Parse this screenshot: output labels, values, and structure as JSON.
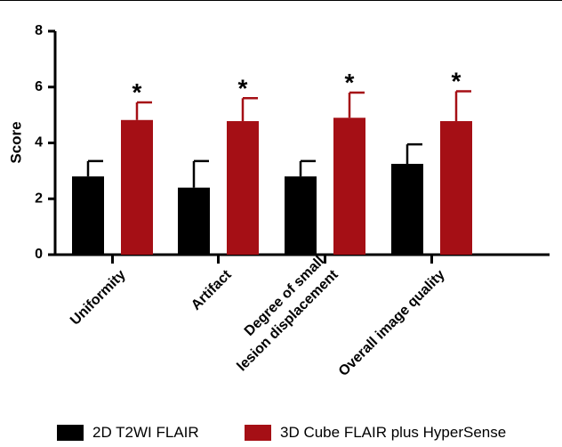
{
  "chart_data": {
    "type": "bar",
    "ylabel": "Score",
    "ylim": [
      0,
      8
    ],
    "yticks": [
      "0",
      "2",
      "4",
      "6",
      "8"
    ],
    "categories": [
      [
        "Uniformity"
      ],
      [
        "Artifact"
      ],
      [
        "Degree of small",
        "lesion displacement"
      ],
      [
        "Overall image quality"
      ]
    ],
    "series": [
      {
        "name": "2D T2WI FLAIR",
        "color": "#000000",
        "values": [
          2.8,
          2.4,
          2.8,
          3.25
        ],
        "error_upper": [
          3.35,
          3.35,
          3.35,
          3.95
        ]
      },
      {
        "name": "3D Cube FLAIR plus HyperSense",
        "color": "#A50F15",
        "values": [
          4.82,
          4.78,
          4.9,
          4.78
        ],
        "error_upper": [
          5.45,
          5.6,
          5.8,
          5.85
        ]
      }
    ],
    "annotations": [
      "*",
      "*",
      "*",
      "*"
    ]
  }
}
